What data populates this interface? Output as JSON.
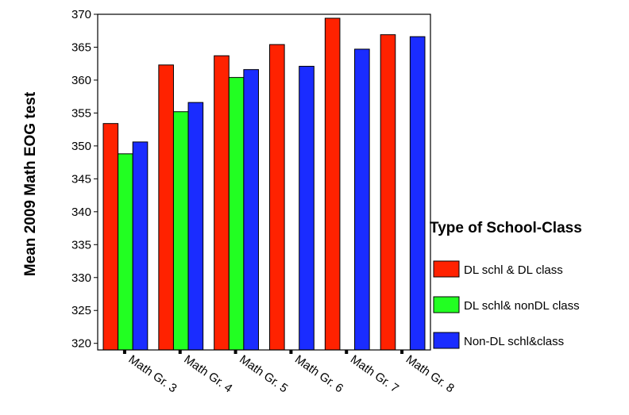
{
  "chart_data": {
    "type": "bar",
    "ylabel": "Mean 2009 Math EOG test",
    "xlabel": "",
    "ylim": [
      319,
      370
    ],
    "yticks": [
      320,
      325,
      330,
      335,
      340,
      345,
      350,
      355,
      360,
      365,
      370
    ],
    "categories": [
      "Math Gr. 3",
      "Math Gr. 4",
      "Math Gr. 5",
      "Math Gr. 6",
      "Math Gr. 7",
      "Math Gr. 8"
    ],
    "legend_title": "Type of School-Class",
    "legend_position": "right",
    "series": [
      {
        "name": "DL schl & DL class",
        "color": "#ff2200",
        "values": [
          353.4,
          362.3,
          363.7,
          365.4,
          369.4,
          366.9
        ]
      },
      {
        "name": "DL schl& nonDL class",
        "color": "#22ff22",
        "values": [
          348.8,
          355.2,
          360.4,
          null,
          null,
          null
        ]
      },
      {
        "name": "Non-DL schl&class",
        "color": "#1a2cff",
        "values": [
          350.6,
          356.6,
          361.6,
          362.1,
          364.7,
          366.6
        ]
      }
    ]
  }
}
